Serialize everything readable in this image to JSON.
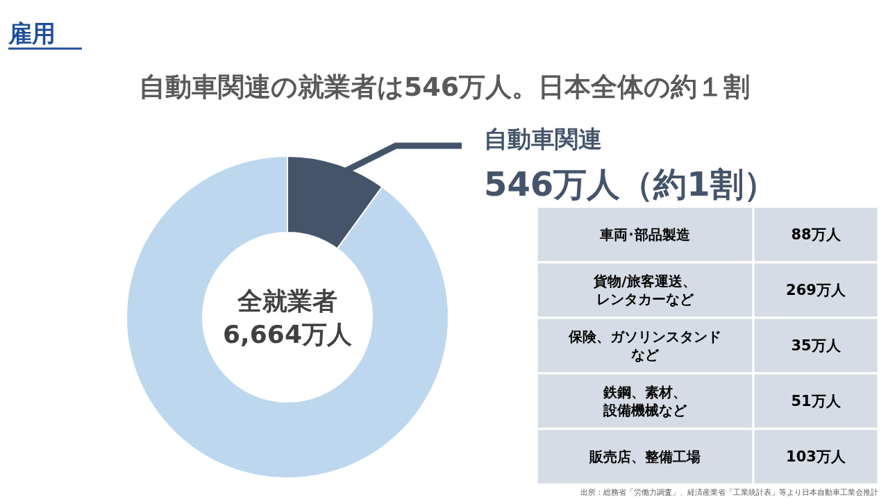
{
  "chart_data": [
    {
      "type": "donut",
      "title": "雇用",
      "subtitle": "自動車関連の就業者は546万人。日本全体の約１割",
      "categories": [
        "自動車関連",
        null
      ],
      "values": [
        10,
        90
      ],
      "colors": [
        "#44546a",
        "#bdd7ee"
      ],
      "annotations": [
        "546万人（約1割）",
        "全就業者\n6,664万人"
      ]
    },
    {
      "type": "other",
      "categories": [
        "車両･部品製造",
        "貨物/旅客運送、レンタカーなど",
        "保険、ガソリンスタンドなど",
        "鉄鋼、素材、設備機械など",
        "販売店、整備工場"
      ],
      "value_labels": [
        "88万人",
        "269万人",
        "35万人",
        "51万人",
        "103万人"
      ],
      "annotations": [
        "出所：総務省「労働力調査」、経済産業省「工業統計表」等より日本自動車工業会推計"
      ]
    }
  ]
}
